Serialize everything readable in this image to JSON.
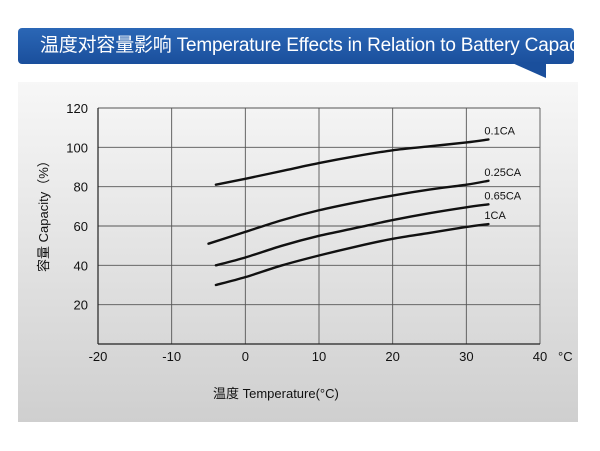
{
  "banner": {
    "title": "温度对容量影响 Temperature Effects in Relation to Battery Capacity"
  },
  "chart_data": {
    "type": "line",
    "xlabel": "温度  Temperature(°C)",
    "ylabel": "容量 Capacity（%）",
    "x_unit": "°C",
    "xlim": [
      -20,
      40
    ],
    "ylim": [
      0,
      120
    ],
    "x_ticks": [
      -20,
      -10,
      0,
      10,
      20,
      30,
      40
    ],
    "y_ticks": [
      20,
      40,
      60,
      80,
      100,
      120
    ],
    "grid": true,
    "series": [
      {
        "name": "0.1CA",
        "x": [
          -4,
          0,
          5,
          10,
          15,
          20,
          25,
          30,
          33
        ],
        "y": [
          81,
          84,
          88,
          92,
          95.5,
          98.5,
          100.5,
          102.5,
          104
        ]
      },
      {
        "name": "0.25CA",
        "x": [
          -5,
          0,
          5,
          10,
          15,
          20,
          25,
          30,
          33
        ],
        "y": [
          51,
          57,
          63,
          68,
          72,
          75.5,
          78.5,
          81,
          83
        ]
      },
      {
        "name": "0.65CA",
        "x": [
          -4,
          0,
          5,
          10,
          15,
          20,
          25,
          30,
          33
        ],
        "y": [
          40,
          44,
          50,
          55,
          59,
          63,
          66.5,
          69.5,
          71
        ]
      },
      {
        "name": "1CA",
        "x": [
          -4,
          0,
          5,
          10,
          15,
          20,
          25,
          30,
          33
        ],
        "y": [
          30,
          34,
          40,
          45,
          49.5,
          53.5,
          56.5,
          59.5,
          61
        ]
      }
    ]
  }
}
